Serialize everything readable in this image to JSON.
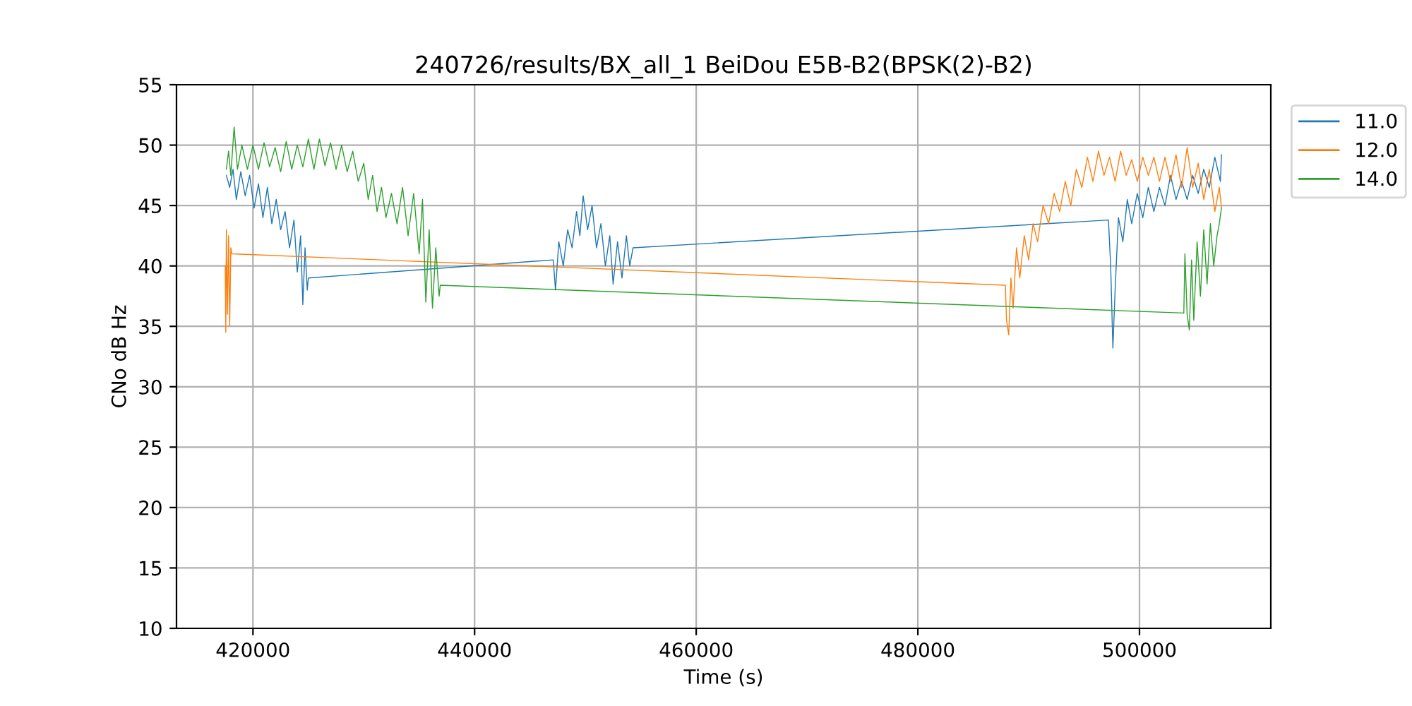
{
  "chart_data": {
    "type": "line",
    "title": "240726/results/BX_all_1 BeiDou E5B-B2(BPSK(2)-B2)",
    "xlabel": "Time (s)",
    "ylabel": "CNo dB Hz",
    "xlim": [
      413100,
      511850
    ],
    "xticks": [
      420000,
      440000,
      460000,
      480000,
      500000
    ],
    "ylim": [
      10,
      55
    ],
    "yticks": [
      10,
      15,
      20,
      25,
      30,
      35,
      40,
      45,
      50,
      55
    ],
    "grid": true,
    "legend": "top right",
    "line_style": "solid",
    "marker": "none",
    "series": [
      {
        "name": "11.0",
        "color": "#1f77b4",
        "x": [
          417600,
          417900,
          418200,
          418500,
          418900,
          419300,
          419700,
          420100,
          420500,
          420900,
          421300,
          421700,
          422100,
          422500,
          422900,
          423300,
          423700,
          424000,
          424300,
          424500,
          424700,
          424900,
          425000,
          447100,
          447300,
          447600,
          448000,
          448400,
          448800,
          449200,
          449500,
          449800,
          450200,
          450600,
          451000,
          451400,
          451800,
          452200,
          452500,
          452900,
          453300,
          453700,
          454000,
          454300,
          497200,
          497400,
          497600,
          497800,
          498100,
          498500,
          498900,
          499300,
          499800,
          500300,
          500800,
          501300,
          501800,
          502300,
          502800,
          503300,
          503800,
          504300,
          504800,
          505300,
          505800,
          506300,
          506800,
          507300,
          507400
        ],
        "values": [
          47.5,
          46.5,
          48.0,
          45.5,
          47.8,
          45.8,
          47.5,
          44.8,
          46.8,
          44.0,
          46.5,
          43.5,
          45.5,
          43.0,
          44.5,
          41.5,
          43.8,
          39.5,
          42.5,
          36.8,
          41.5,
          38.0,
          39.0,
          40.5,
          38.0,
          42.0,
          40.0,
          43.0,
          41.5,
          44.5,
          42.5,
          45.8,
          43.0,
          45.0,
          41.5,
          43.5,
          40.0,
          42.5,
          38.5,
          42.0,
          39.0,
          42.5,
          40.0,
          41.5,
          43.8,
          40.0,
          33.2,
          38.0,
          44.0,
          42.0,
          45.5,
          43.5,
          46.0,
          44.0,
          46.5,
          44.5,
          46.5,
          45.0,
          47.5,
          45.5,
          47.0,
          45.5,
          47.5,
          46.0,
          48.0,
          46.5,
          49.0,
          47.0,
          49.2
        ]
      },
      {
        "name": "12.0",
        "color": "#ff7f0e",
        "x": [
          417500,
          417550,
          417600,
          417700,
          417800,
          417900,
          418000,
          418100,
          487900,
          488000,
          488200,
          488400,
          488600,
          488900,
          489200,
          489600,
          490000,
          490400,
          490800,
          491300,
          491800,
          492300,
          492800,
          493300,
          493800,
          494300,
          494800,
          495300,
          495800,
          496300,
          496800,
          497300,
          497800,
          498300,
          498800,
          499300,
          499800,
          500300,
          500800,
          501300,
          501800,
          502300,
          502800,
          503300,
          503800,
          504300,
          504800,
          505300,
          505800,
          506300,
          506800,
          507200,
          507400
        ],
        "values": [
          40.0,
          34.5,
          43.0,
          36.0,
          42.5,
          35.0,
          41.5,
          41.0,
          38.4,
          35.5,
          34.3,
          39.0,
          36.5,
          41.5,
          39.0,
          42.5,
          40.5,
          43.5,
          42.0,
          45.0,
          43.5,
          46.0,
          44.5,
          47.0,
          45.0,
          48.0,
          46.5,
          49.0,
          47.0,
          49.5,
          47.5,
          49.0,
          47.0,
          49.5,
          47.5,
          48.8,
          47.0,
          49.0,
          47.5,
          49.0,
          47.0,
          49.0,
          47.0,
          49.2,
          46.5,
          49.8,
          46.5,
          48.5,
          45.5,
          48.0,
          44.5,
          46.5,
          44.8
        ]
      },
      {
        "name": "14.0",
        "color": "#2ca02c",
        "x": [
          417600,
          417800,
          418000,
          418300,
          418600,
          419000,
          419500,
          420000,
          420500,
          421000,
          421500,
          422000,
          422500,
          423000,
          423500,
          424000,
          424500,
          425000,
          425500,
          426000,
          426500,
          427000,
          427500,
          428000,
          428500,
          429000,
          429500,
          430000,
          430400,
          430800,
          431200,
          431600,
          432000,
          432500,
          433000,
          433500,
          434000,
          434500,
          435000,
          435300,
          435600,
          435900,
          436200,
          436500,
          436800,
          436900,
          504000,
          504100,
          504300,
          504500,
          504700,
          504900,
          505200,
          505500,
          505800,
          506100,
          506400,
          506700,
          507000,
          507200,
          507400
        ],
        "values": [
          48.0,
          49.5,
          47.5,
          51.5,
          48.0,
          50.0,
          48.0,
          50.0,
          48.0,
          50.2,
          48.2,
          49.8,
          47.8,
          50.3,
          48.0,
          50.0,
          48.2,
          50.5,
          48.0,
          50.5,
          48.3,
          50.2,
          48.0,
          50.0,
          47.8,
          49.5,
          47.0,
          48.5,
          45.5,
          47.5,
          44.5,
          46.5,
          44.0,
          46.0,
          43.5,
          46.5,
          42.5,
          46.0,
          41.0,
          45.5,
          37.0,
          43.0,
          36.5,
          41.5,
          37.5,
          38.4,
          36.1,
          41.0,
          36.0,
          34.7,
          40.5,
          35.5,
          42.0,
          37.5,
          43.0,
          38.5,
          43.5,
          40.0,
          42.5,
          43.5,
          44.8
        ]
      }
    ]
  }
}
